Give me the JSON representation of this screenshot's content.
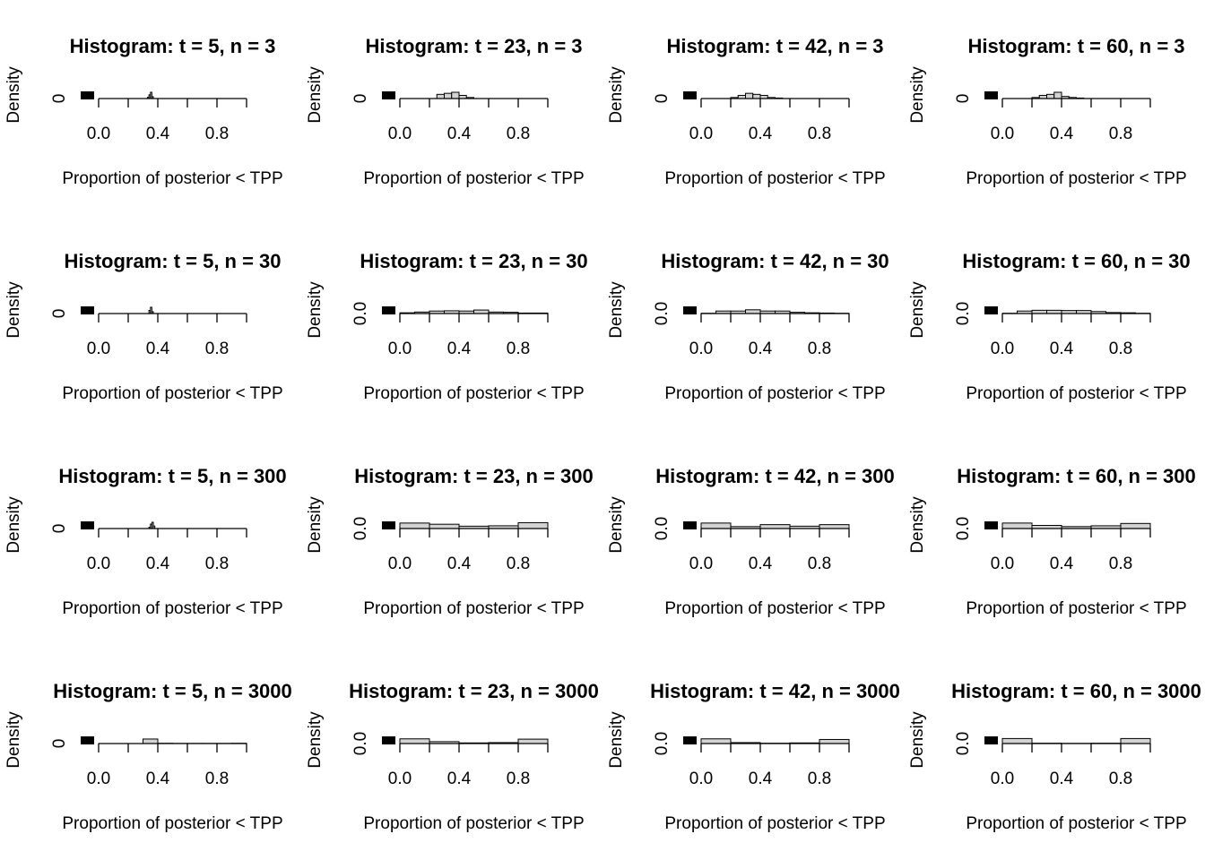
{
  "chart_data": [
    {
      "type": "histogram",
      "title": "Histogram: t = 5, n = 3",
      "xlabel": "Proportion of posterior < TPP",
      "ylabel": "Density",
      "bins": [
        0.33,
        0.34,
        0.35,
        0.36,
        0.37
      ],
      "counts": [
        20,
        60,
        100,
        30
      ],
      "color": "#d3d3d3",
      "xlim": [
        0,
        1
      ],
      "ylim": [
        0,
        100
      ],
      "xticks": [
        {
          "value": 0,
          "label": "0.0"
        },
        0.2,
        {
          "value": 0.4,
          "label": "0.4"
        },
        0.6,
        {
          "value": 0.8,
          "label": "0.8"
        },
        1
      ],
      "yticks": [
        0
      ]
    },
    {
      "type": "histogram",
      "title": "Histogram: t = 23, n = 3",
      "xlabel": "Proportion of posterior < TPP",
      "ylabel": "Density",
      "bins": [
        0.25,
        0.3,
        0.35,
        0.4,
        0.45,
        0.5
      ],
      "counts": [
        4,
        5,
        6,
        3,
        1
      ],
      "color": "#d3d3d3",
      "xlim": [
        0,
        1
      ],
      "ylim": [
        0,
        6
      ],
      "xticks": [
        {
          "value": 0,
          "label": "0.0"
        },
        0.2,
        {
          "value": 0.4,
          "label": "0.4"
        },
        0.6,
        {
          "value": 0.8,
          "label": "0.8"
        },
        1
      ],
      "yticks": [
        0
      ]
    },
    {
      "type": "histogram",
      "title": "Histogram: t = 42, n = 3",
      "xlabel": "Proportion of posterior < TPP",
      "ylabel": "Density",
      "bins": [
        0.2,
        0.25,
        0.3,
        0.35,
        0.4,
        0.45,
        0.5,
        0.55
      ],
      "counts": [
        1,
        3,
        5,
        4,
        3,
        1,
        0.5
      ],
      "color": "#d3d3d3",
      "xlim": [
        0,
        1
      ],
      "ylim": [
        0,
        6
      ],
      "xticks": [
        {
          "value": 0,
          "label": "0.0"
        },
        0.2,
        {
          "value": 0.4,
          "label": "0.4"
        },
        0.6,
        {
          "value": 0.8,
          "label": "0.8"
        },
        1
      ],
      "yticks": [
        0
      ]
    },
    {
      "type": "histogram",
      "title": "Histogram: t = 60, n = 3",
      "xlabel": "Proportion of posterior < TPP",
      "ylabel": "Density",
      "bins": [
        0.2,
        0.25,
        0.3,
        0.35,
        0.4,
        0.45,
        0.5,
        0.55
      ],
      "counts": [
        1,
        3,
        4,
        6,
        2,
        1,
        0.5
      ],
      "color": "#d3d3d3",
      "xlim": [
        0,
        1
      ],
      "ylim": [
        0,
        6
      ],
      "xticks": [
        {
          "value": 0,
          "label": "0.0"
        },
        0.2,
        {
          "value": 0.4,
          "label": "0.4"
        },
        0.6,
        {
          "value": 0.8,
          "label": "0.8"
        },
        1
      ],
      "yticks": [
        0
      ]
    },
    {
      "type": "histogram",
      "title": "Histogram: t = 5, n = 30",
      "xlabel": "Proportion of posterior < TPP",
      "ylabel": "Density",
      "bins": [
        0.34,
        0.35,
        0.36,
        0.37
      ],
      "counts": [
        50,
        100,
        30
      ],
      "color": "#d3d3d3",
      "xlim": [
        0,
        1
      ],
      "ylim": [
        0,
        100
      ],
      "xticks": [
        {
          "value": 0,
          "label": "0.0"
        },
        0.2,
        {
          "value": 0.4,
          "label": "0.4"
        },
        0.6,
        {
          "value": 0.8,
          "label": "0.8"
        },
        1
      ],
      "yticks": [
        0
      ]
    },
    {
      "type": "histogram",
      "title": "Histogram: t = 23, n = 30",
      "xlabel": "Proportion of posterior < TPP",
      "ylabel": "Density",
      "bins": [
        0,
        0.1,
        0.2,
        0.3,
        0.4,
        0.5,
        0.6,
        0.7,
        0.8,
        0.9,
        1
      ],
      "counts": [
        0.3,
        0.6,
        1.0,
        1.1,
        1.0,
        1.4,
        0.6,
        0.5,
        0.2,
        0.2
      ],
      "color": "#d3d3d3",
      "xlim": [
        0,
        1
      ],
      "ylim": [
        0,
        2.5
      ],
      "xticks": [
        {
          "value": 0,
          "label": "0.0"
        },
        0.2,
        {
          "value": 0.4,
          "label": "0.4"
        },
        0.6,
        {
          "value": 0.8,
          "label": "0.8"
        },
        1
      ],
      "yticks": [
        {
          "value": 0,
          "label": "0.0"
        }
      ]
    },
    {
      "type": "histogram",
      "title": "Histogram: t = 42, n = 30",
      "xlabel": "Proportion of posterior < TPP",
      "ylabel": "Density",
      "bins": [
        0,
        0.1,
        0.2,
        0.3,
        0.4,
        0.5,
        0.6,
        0.7,
        0.8,
        0.9,
        1
      ],
      "counts": [
        0.1,
        1.0,
        1.0,
        1.5,
        1.0,
        1.0,
        0.5,
        0.3,
        0.2,
        0.1
      ],
      "color": "#d3d3d3",
      "xlim": [
        0,
        1
      ],
      "ylim": [
        0,
        2.5
      ],
      "xticks": [
        {
          "value": 0,
          "label": "0.0"
        },
        0.2,
        {
          "value": 0.4,
          "label": "0.4"
        },
        0.6,
        {
          "value": 0.8,
          "label": "0.8"
        },
        1
      ],
      "yticks": [
        {
          "value": 0,
          "label": "0.0"
        }
      ]
    },
    {
      "type": "histogram",
      "title": "Histogram: t = 60, n = 30",
      "xlabel": "Proportion of posterior < TPP",
      "ylabel": "Density",
      "bins": [
        0,
        0.1,
        0.2,
        0.3,
        0.4,
        0.5,
        0.6,
        0.7,
        0.8,
        0.9,
        1
      ],
      "counts": [
        0.1,
        1.0,
        1.3,
        1.3,
        1.2,
        1.2,
        0.8,
        0.4,
        0.3,
        0.1
      ],
      "color": "#d3d3d3",
      "xlim": [
        0,
        1
      ],
      "ylim": [
        0,
        2.5
      ],
      "xticks": [
        {
          "value": 0,
          "label": "0.0"
        },
        0.2,
        {
          "value": 0.4,
          "label": "0.4"
        },
        0.6,
        {
          "value": 0.8,
          "label": "0.8"
        },
        1
      ],
      "yticks": [
        {
          "value": 0,
          "label": "0.0"
        }
      ]
    },
    {
      "type": "histogram",
      "title": "Histogram: t = 5, n = 300",
      "xlabel": "Proportion of posterior < TPP",
      "ylabel": "Density",
      "bins": [
        0.34,
        0.35,
        0.36,
        0.37,
        0.38
      ],
      "counts": [
        20,
        70,
        100,
        40
      ],
      "color": "#d3d3d3",
      "xlim": [
        0,
        1
      ],
      "ylim": [
        0,
        100
      ],
      "xticks": [
        {
          "value": 0,
          "label": "0.0"
        },
        0.2,
        {
          "value": 0.4,
          "label": "0.4"
        },
        0.6,
        {
          "value": 0.8,
          "label": "0.8"
        },
        1
      ],
      "yticks": [
        0
      ]
    },
    {
      "type": "histogram",
      "title": "Histogram: t = 23, n = 300",
      "xlabel": "Proportion of posterior < TPP",
      "ylabel": "Density",
      "bins": [
        0,
        0.2,
        0.4,
        0.6,
        0.8,
        1
      ],
      "counts": [
        1.4,
        1.1,
        0.6,
        0.7,
        1.5
      ],
      "color": "#d3d3d3",
      "xlim": [
        0,
        1
      ],
      "ylim": [
        0,
        1.6
      ],
      "xticks": [
        {
          "value": 0,
          "label": "0.0"
        },
        0.2,
        {
          "value": 0.4,
          "label": "0.4"
        },
        0.6,
        {
          "value": 0.8,
          "label": "0.8"
        },
        1
      ],
      "yticks": [
        {
          "value": 0,
          "label": "0.0"
        }
      ]
    },
    {
      "type": "histogram",
      "title": "Histogram: t = 42, n = 300",
      "xlabel": "Proportion of posterior < TPP",
      "ylabel": "Density",
      "bins": [
        0,
        0.2,
        0.4,
        0.6,
        0.8,
        1
      ],
      "counts": [
        1.4,
        0.5,
        1.0,
        0.6,
        1.0
      ],
      "color": "#d3d3d3",
      "xlim": [
        0,
        1
      ],
      "ylim": [
        0,
        1.6
      ],
      "xticks": [
        {
          "value": 0,
          "label": "0.0"
        },
        0.2,
        {
          "value": 0.4,
          "label": "0.4"
        },
        0.6,
        {
          "value": 0.8,
          "label": "0.8"
        },
        1
      ],
      "yticks": [
        {
          "value": 0,
          "label": "0.0"
        }
      ]
    },
    {
      "type": "histogram",
      "title": "Histogram: t = 60, n = 300",
      "xlabel": "Proportion of posterior < TPP",
      "ylabel": "Density",
      "bins": [
        0,
        0.2,
        0.4,
        0.6,
        0.8,
        1
      ],
      "counts": [
        1.4,
        0.8,
        0.5,
        0.7,
        1.3
      ],
      "color": "#d3d3d3",
      "xlim": [
        0,
        1
      ],
      "ylim": [
        0,
        1.6
      ],
      "xticks": [
        {
          "value": 0,
          "label": "0.0"
        },
        0.2,
        {
          "value": 0.4,
          "label": "0.4"
        },
        0.6,
        {
          "value": 0.8,
          "label": "0.8"
        },
        1
      ],
      "yticks": [
        {
          "value": 0,
          "label": "0.0"
        }
      ]
    },
    {
      "type": "histogram",
      "title": "Histogram: t = 5, n = 3000",
      "xlabel": "Proportion of posterior < TPP",
      "ylabel": "Density",
      "bins": [
        0,
        0.1,
        0.2,
        0.3,
        0.4,
        0.5,
        0.6,
        0.7,
        0.8,
        0.9,
        1
      ],
      "counts": [
        0,
        0,
        0,
        1.8,
        0.1,
        0.05,
        0.05,
        0.05,
        0.05,
        0.1
      ],
      "color": "#d3d3d3",
      "xlim": [
        0,
        1
      ],
      "ylim": [
        0,
        2.5
      ],
      "xticks": [
        {
          "value": 0,
          "label": "0.0"
        },
        0.2,
        {
          "value": 0.4,
          "label": "0.4"
        },
        0.6,
        {
          "value": 0.8,
          "label": "0.8"
        },
        1
      ],
      "yticks": [
        0
      ]
    },
    {
      "type": "histogram",
      "title": "Histogram: t = 23, n = 3000",
      "xlabel": "Proportion of posterior < TPP",
      "ylabel": "Density",
      "bins": [
        0,
        0.2,
        0.4,
        0.6,
        0.8,
        1
      ],
      "counts": [
        1.5,
        0.6,
        0.2,
        0.3,
        1.4
      ],
      "color": "#d3d3d3",
      "xlim": [
        0,
        1
      ],
      "ylim": [
        0,
        2
      ],
      "xticks": [
        {
          "value": 0,
          "label": "0.0"
        },
        0.2,
        {
          "value": 0.4,
          "label": "0.4"
        },
        0.6,
        {
          "value": 0.8,
          "label": "0.8"
        },
        1
      ],
      "yticks": [
        {
          "value": 0,
          "label": "0.0"
        }
      ]
    },
    {
      "type": "histogram",
      "title": "Histogram: t = 42, n = 3000",
      "xlabel": "Proportion of posterior < TPP",
      "ylabel": "Density",
      "bins": [
        0,
        0.2,
        0.4,
        0.6,
        0.8,
        1
      ],
      "counts": [
        1.5,
        0.3,
        0.1,
        0.2,
        1.3
      ],
      "color": "#d3d3d3",
      "xlim": [
        0,
        1
      ],
      "ylim": [
        0,
        2
      ],
      "xticks": [
        {
          "value": 0,
          "label": "0.0"
        },
        0.2,
        {
          "value": 0.4,
          "label": "0.4"
        },
        0.6,
        {
          "value": 0.8,
          "label": "0.8"
        },
        1
      ],
      "yticks": [
        {
          "value": 0,
          "label": "0.0"
        }
      ]
    },
    {
      "type": "histogram",
      "title": "Histogram: t = 60, n = 3000",
      "xlabel": "Proportion of posterior < TPP",
      "ylabel": "Density",
      "bins": [
        0,
        0.2,
        0.4,
        0.6,
        0.8,
        1
      ],
      "counts": [
        1.6,
        0.1,
        0.05,
        0.1,
        1.6
      ],
      "color": "#d3d3d3",
      "xlim": [
        0,
        1
      ],
      "ylim": [
        0,
        2
      ],
      "xticks": [
        {
          "value": 0,
          "label": "0.0"
        },
        0.2,
        {
          "value": 0.4,
          "label": "0.4"
        },
        0.6,
        {
          "value": 0.8,
          "label": "0.8"
        },
        1
      ],
      "yticks": [
        {
          "value": 0,
          "label": "0.0"
        }
      ]
    }
  ]
}
